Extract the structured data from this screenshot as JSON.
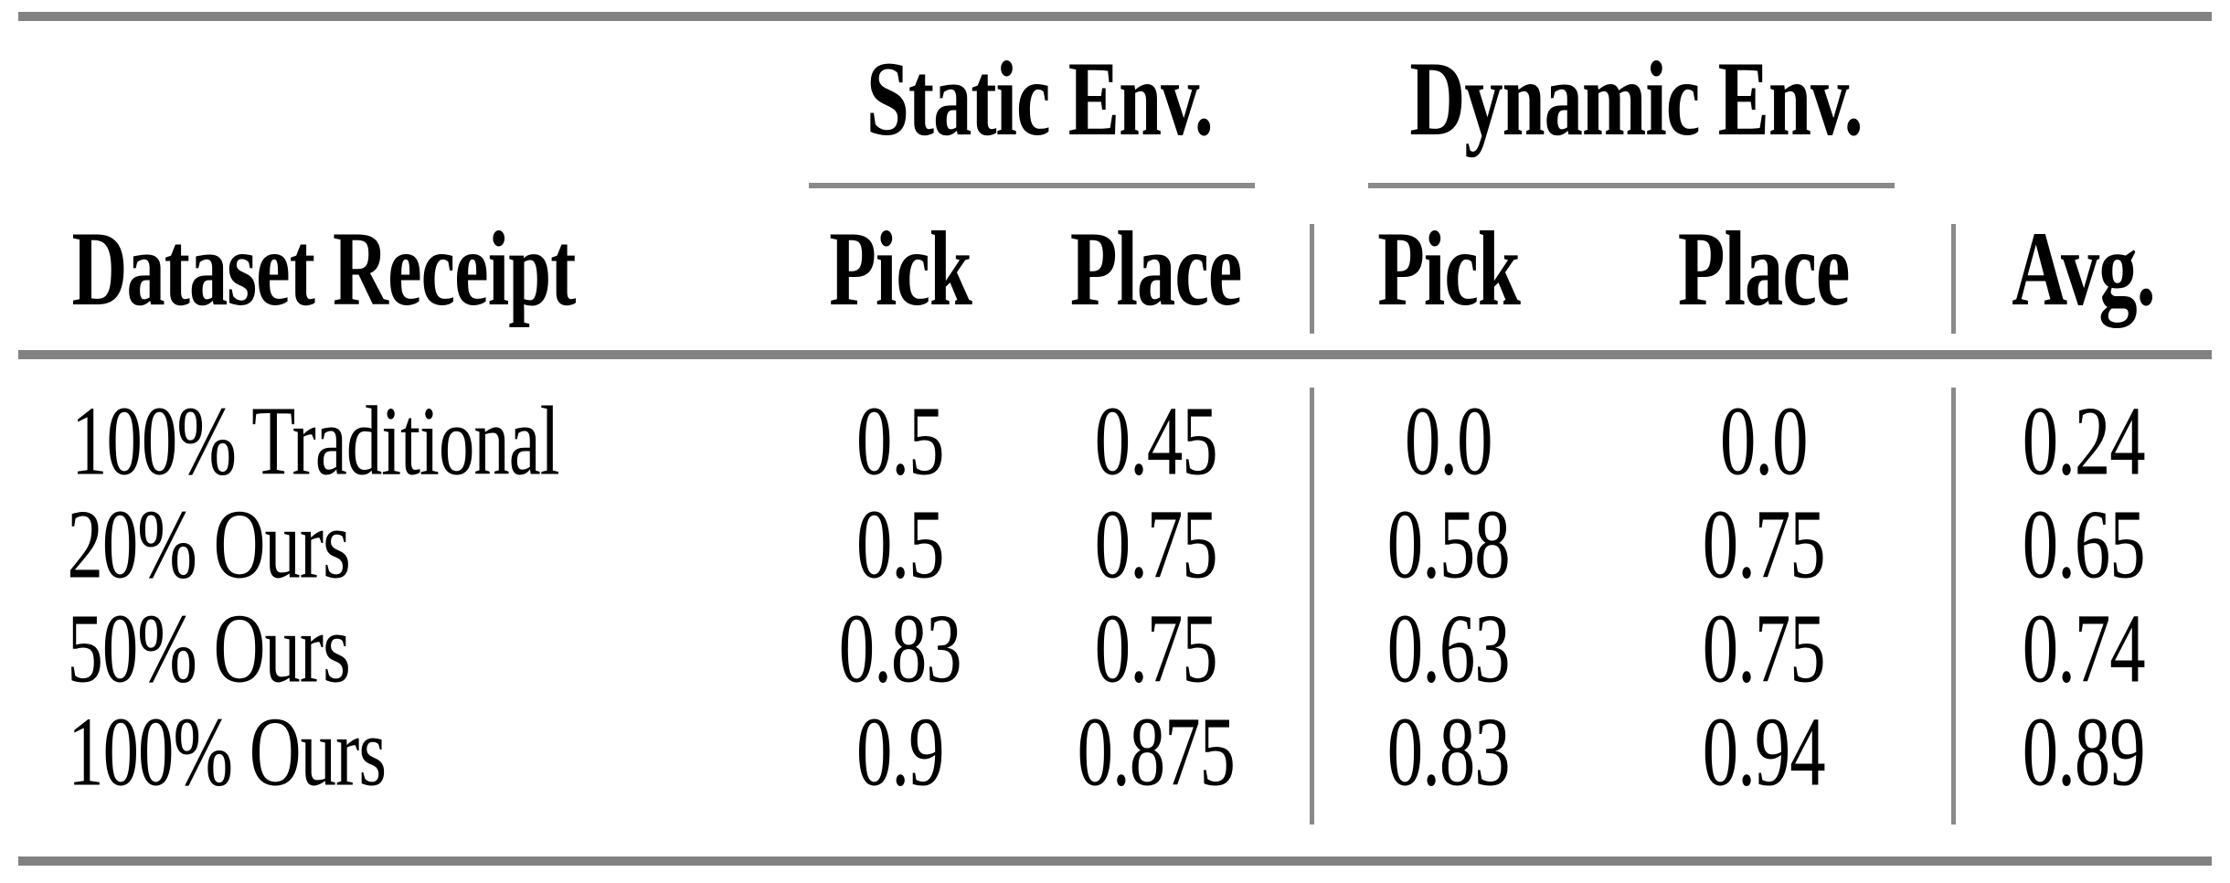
{
  "table": {
    "group_headers": [
      {
        "label": "Static Env."
      },
      {
        "label": "Dynamic Env."
      }
    ],
    "columns": {
      "label": "Dataset Receipt",
      "static_pick": "Pick",
      "static_place": "Place",
      "dynamic_pick": "Pick",
      "dynamic_place": "Place",
      "avg": "Avg."
    },
    "rows": [
      {
        "label": "100% Traditional",
        "static_pick": "0.5",
        "static_place": "0.45",
        "dynamic_pick": "0.0",
        "dynamic_place": "0.0",
        "avg": "0.24"
      },
      {
        "label": "20% Ours",
        "static_pick": "0.5",
        "static_place": "0.75",
        "dynamic_pick": "0.58",
        "dynamic_place": "0.75",
        "avg": "0.65"
      },
      {
        "label": "50% Ours",
        "static_pick": "0.83",
        "static_place": "0.75",
        "dynamic_pick": "0.63",
        "dynamic_place": "0.75",
        "avg": "0.74"
      },
      {
        "label": "100% Ours",
        "static_pick": "0.9",
        "static_place": "0.875",
        "dynamic_pick": "0.83",
        "dynamic_place": "0.94",
        "avg": "0.89"
      }
    ]
  },
  "colors": {
    "rule_gray": "#828282",
    "text": "#000000",
    "background": "#ffffff"
  },
  "chart_data": {
    "type": "table",
    "title": "",
    "column_groups": [
      {
        "label": "Static Env.",
        "columns": [
          "Pick",
          "Place"
        ]
      },
      {
        "label": "Dynamic Env.",
        "columns": [
          "Pick",
          "Place"
        ]
      }
    ],
    "columns": [
      "Dataset Receipt",
      "Static Pick",
      "Static Place",
      "Dynamic Pick",
      "Dynamic Place",
      "Avg."
    ],
    "rows": [
      [
        "100% Traditional",
        0.5,
        0.45,
        0.0,
        0.0,
        0.24
      ],
      [
        "20% Ours",
        0.5,
        0.75,
        0.58,
        0.75,
        0.65
      ],
      [
        "50% Ours",
        0.83,
        0.75,
        0.63,
        0.75,
        0.74
      ],
      [
        "100% Ours",
        0.9,
        0.875,
        0.83,
        0.94,
        0.89
      ]
    ]
  }
}
